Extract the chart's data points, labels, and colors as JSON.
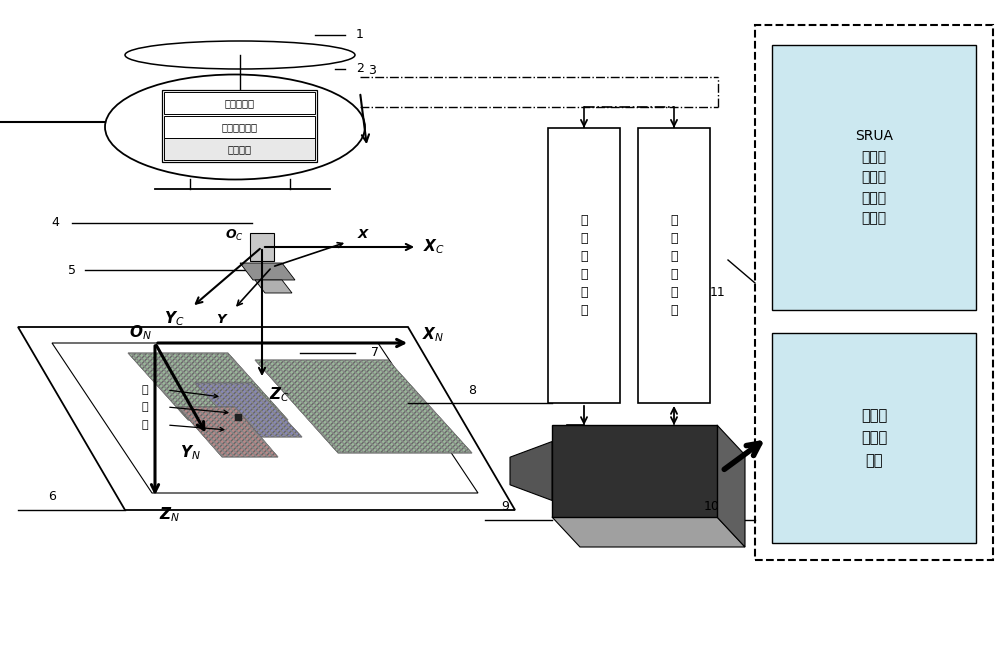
{
  "bg_color": "#ffffff",
  "fig_width": 10.0,
  "fig_height": 6.65,
  "labels": {
    "airborne_sensor": "机载传感器",
    "data_processing": "数据处理单元",
    "flight_control": "飞控系统",
    "wireless_image": "无\n线\n图\n传\n模\n块",
    "wireless_data": "无\n线\n数\n传\n模\n块",
    "srua": "SRUA\n状态和\n摄像机\n图像信\n息显示",
    "mono_vision": "单目视\n觉处理\n单元",
    "green": "绿",
    "blue": "蓝",
    "red": "红",
    "Xc": "$\\boldsymbol{X}_C$",
    "Yc": "$\\boldsymbol{Y}_C$",
    "Zc": "$\\boldsymbol{Z}_C$",
    "Oc": "$\\boldsymbol{O}_C$",
    "X": "$\\boldsymbol{X}$",
    "Y": "$\\boldsymbol{Y}$",
    "ON": "$\\boldsymbol{O}_N$",
    "XN": "$\\boldsymbol{X}_N$",
    "YN": "$\\boldsymbol{Y}_N$",
    "ZN": "$\\boldsymbol{Z}_N$",
    "num1": "1",
    "num2": "2",
    "num3": "3",
    "num4": "4",
    "num5": "5",
    "num6": "6",
    "num7": "7",
    "num8": "8",
    "num9": "9",
    "num10": "10",
    "num11": "11"
  },
  "colors": {
    "srua_fill": "#cce8f0",
    "mono_fill": "#cce8f0",
    "camera_dark": "#303030",
    "camera_mid": "#606060",
    "camera_light": "#a0a0a0"
  }
}
